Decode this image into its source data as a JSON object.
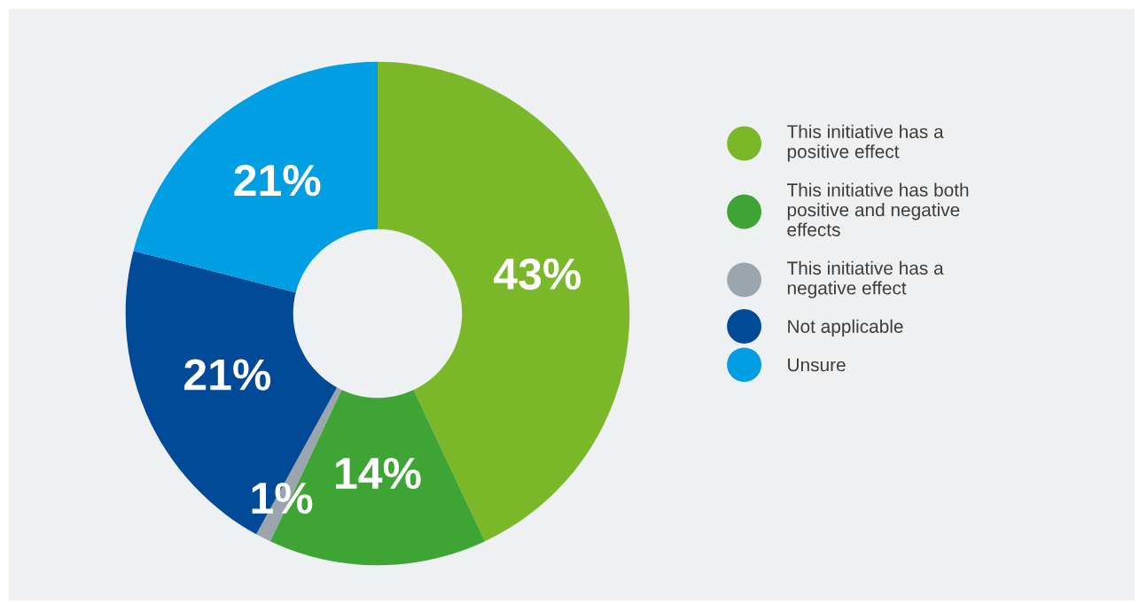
{
  "chart_data": {
    "type": "donut",
    "categories": [
      "This initiative has a\npositive effect",
      "This initiative has both\npositive and negative\neffects",
      "This initiative has a\nnegative effect",
      "Not applicable",
      "Unsure"
    ],
    "values": [
      43,
      14,
      1,
      21,
      21
    ],
    "colors": [
      "#7ab829",
      "#3ea535",
      "#9aa5ad",
      "#004a97",
      "#009fe3"
    ],
    "value_labels": [
      "43%",
      "14%",
      "1%",
      "21%",
      "21%"
    ],
    "legend": "right"
  }
}
